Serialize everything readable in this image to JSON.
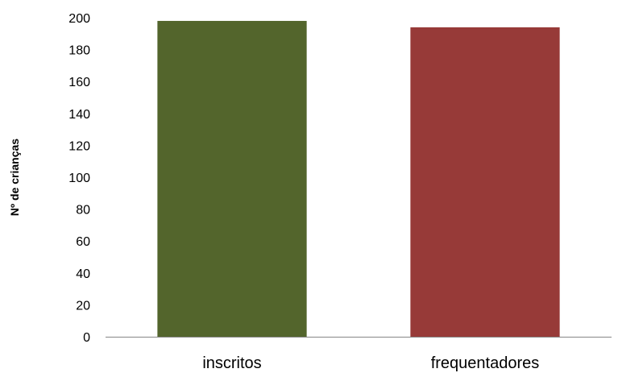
{
  "chart_data": {
    "type": "bar",
    "title": "",
    "xlabel": "",
    "ylabel": "Nº de crianças",
    "categories": [
      "inscritos",
      "frequentadores"
    ],
    "values": [
      198,
      194
    ],
    "colors": [
      "#53652c",
      "#973a38"
    ],
    "ylim": [
      0,
      200
    ],
    "yticks": [
      0,
      20,
      40,
      60,
      80,
      100,
      120,
      140,
      160,
      180,
      200
    ],
    "grid": false,
    "legend": "none"
  }
}
